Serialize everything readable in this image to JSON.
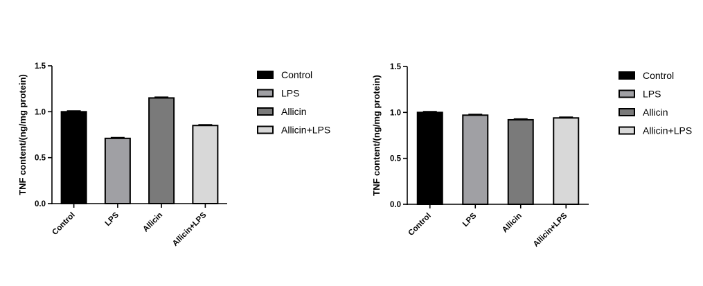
{
  "chart_data": [
    {
      "type": "bar",
      "categories": [
        "Control",
        "LPS",
        "Allicin",
        "Allicin+LPS"
      ],
      "values": [
        1.0,
        0.71,
        1.15,
        0.85
      ],
      "errors": [
        0.01,
        0.01,
        0.01,
        0.01
      ],
      "colors": [
        "#000000",
        "#a0a0a4",
        "#7a7a7a",
        "#d8d8d8"
      ],
      "ylabel": "TNF content/(ng/mg protein)",
      "ylim": [
        0,
        1.5
      ],
      "yticks": [
        "0.0",
        "0.5",
        "1.0",
        "1.5"
      ],
      "legend": [
        "Control",
        "LPS",
        "Allicin",
        "Allicin+LPS"
      ],
      "legend_position": "right"
    },
    {
      "type": "bar",
      "categories": [
        "Control",
        "LPS",
        "Allicin",
        "Allicin+LPS"
      ],
      "values": [
        1.0,
        0.97,
        0.92,
        0.94
      ],
      "errors": [
        0.01,
        0.01,
        0.01,
        0.01
      ],
      "colors": [
        "#000000",
        "#a0a0a4",
        "#7a7a7a",
        "#d8d8d8"
      ],
      "ylabel": "TNF content/(ng/mg protein)",
      "ylim": [
        0,
        1.5
      ],
      "yticks": [
        "0.0",
        "0.5",
        "1.0",
        "1.5"
      ],
      "legend": [
        "Control",
        "LPS",
        "Allicin",
        "Allicin+LPS"
      ],
      "legend_position": "right"
    }
  ]
}
